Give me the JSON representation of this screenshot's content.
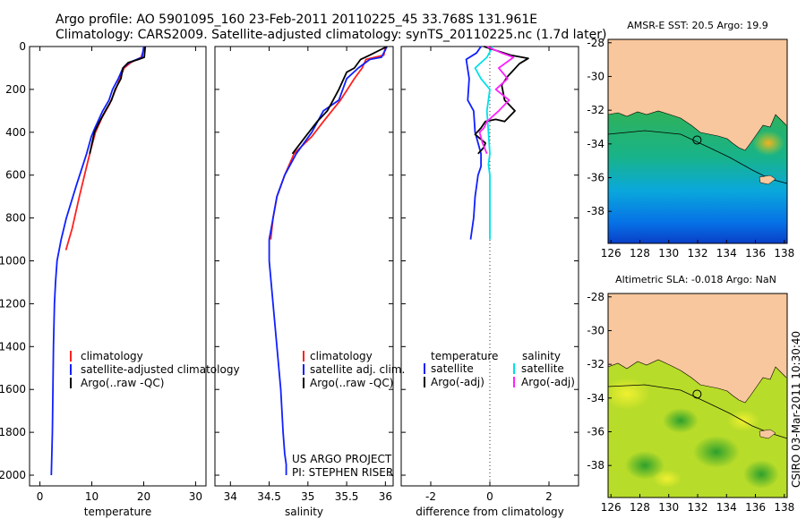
{
  "header": {
    "line1": "Argo profile: AO 5901095_160 23-Feb-2011 20110225_45 33.768S 131.961E",
    "line2": "Climatology: CARS2009. Satellite-adjusted climatology: synTS_20110225.nc (1.7d later)"
  },
  "credit": "CSIRO 03-Mar-2011 10:30:40",
  "project": {
    "line1": "US ARGO PROJECT",
    "line2": "PI: STEPHEN RISER"
  },
  "colors": {
    "climatology": "#ff2020",
    "satellite": "#1020ff",
    "argo": "#000000",
    "sat_salinity": "#00e0e8",
    "argo_salinity": "#ff20ff",
    "land": "#f9c79d"
  },
  "chart_data": [
    {
      "id": "temperature",
      "type": "line",
      "xlabel": "temperature",
      "xlim": [
        -2,
        32
      ],
      "ylim": [
        2050,
        0
      ],
      "xticks": [
        0,
        10,
        20,
        30
      ],
      "yticks": [
        0,
        200,
        400,
        600,
        800,
        1000,
        1200,
        1400,
        1600,
        1800,
        2000
      ],
      "legend": [
        "climatology",
        "satellite-adjusted climatology",
        "Argo(..raw -QC)"
      ],
      "series": [
        {
          "name": "climatology",
          "color": "#ff2020",
          "x": [
            20.2,
            19.5,
            17.5,
            16.2,
            15.4,
            14.6,
            13.4,
            12.0,
            10.7,
            9.8,
            9.0,
            7.6,
            6.2,
            5.0
          ],
          "y": [
            0,
            50,
            75,
            100,
            150,
            200,
            270,
            330,
            400,
            480,
            560,
            700,
            850,
            950
          ]
        },
        {
          "name": "satellite-adjusted climatology",
          "color": "#1020ff",
          "x": [
            20.0,
            19.7,
            17.2,
            16.0,
            15.1,
            14.0,
            13.3,
            12.1,
            10.6,
            9.9,
            9.0,
            7.0,
            5.1,
            4.1,
            3.3,
            3.0,
            2.8,
            2.6,
            2.5,
            2.4,
            2.3,
            2.2
          ],
          "y": [
            0,
            50,
            75,
            100,
            150,
            200,
            250,
            300,
            380,
            420,
            500,
            650,
            800,
            900,
            1000,
            1100,
            1200,
            1400,
            1600,
            1800,
            1900,
            2000
          ]
        },
        {
          "name": "Argo(..raw -QC)",
          "color": "#000000",
          "x": [
            20.3,
            20.1,
            19.0,
            17.0,
            16.0,
            15.6,
            14.5,
            13.8,
            12.6,
            11.5,
            10.5,
            9.6
          ],
          "y": [
            0,
            50,
            60,
            75,
            100,
            150,
            200,
            250,
            300,
            350,
            400,
            500
          ]
        }
      ]
    },
    {
      "id": "salinity",
      "type": "line",
      "xlabel": "salinity",
      "xlim": [
        33.8,
        36.1
      ],
      "ylim": [
        2050,
        0
      ],
      "xticks": [
        34,
        34.5,
        35,
        35.5,
        36
      ],
      "legend": [
        "climatology",
        "satellite adj. clim.",
        "Argo(..raw -QC)"
      ],
      "series": [
        {
          "name": "climatology",
          "color": "#ff2020",
          "x": [
            36.0,
            35.98,
            35.75,
            35.7,
            35.6,
            35.42,
            35.2,
            35.05,
            34.82,
            34.7,
            34.6,
            34.55,
            34.52
          ],
          "y": [
            0,
            40,
            60,
            100,
            150,
            250,
            350,
            420,
            500,
            600,
            700,
            800,
            900
          ]
        },
        {
          "name": "satellite adj. clim.",
          "color": "#1020ff",
          "x": [
            36.02,
            35.95,
            35.8,
            35.65,
            35.5,
            35.4,
            35.2,
            35.05,
            34.85,
            34.7,
            34.6,
            34.55,
            34.5,
            34.5,
            34.55,
            34.6,
            34.65,
            34.68,
            34.7,
            34.72,
            34.72
          ],
          "y": [
            0,
            50,
            60,
            100,
            150,
            250,
            300,
            400,
            500,
            600,
            700,
            800,
            900,
            1000,
            1200,
            1400,
            1600,
            1800,
            1900,
            1950,
            2000
          ]
        },
        {
          "name": "Argo(..raw -QC)",
          "color": "#000000",
          "x": [
            36.02,
            35.8,
            35.68,
            35.6,
            35.5,
            35.4,
            35.25,
            35.12,
            34.97,
            34.8
          ],
          "y": [
            0,
            40,
            60,
            100,
            120,
            200,
            300,
            350,
            420,
            500
          ]
        }
      ]
    },
    {
      "id": "difference",
      "type": "line",
      "xlabel": "difference from climatology",
      "xlim": [
        -3,
        3
      ],
      "ylim": [
        2050,
        0
      ],
      "xticks": [
        -2,
        0,
        2
      ],
      "legend_temperature_title": "temperature",
      "legend_salinity_title": "salinity",
      "legend_temperature": [
        "satellite",
        "Argo(-adj)"
      ],
      "legend_salinity": [
        "satellite",
        "Argo(-adj)"
      ],
      "series": [
        {
          "name": "temperature satellite",
          "color": "#1020ff",
          "x": [
            -0.3,
            -0.45,
            -0.8,
            -0.7,
            -0.75,
            -0.55,
            -0.5,
            -0.3,
            -0.3,
            -0.4,
            -0.5,
            -0.55,
            -0.6,
            -0.65
          ],
          "y": [
            0,
            30,
            60,
            150,
            250,
            300,
            400,
            500,
            560,
            600,
            700,
            800,
            850,
            900
          ]
        },
        {
          "name": "salinity satellite",
          "color": "#00e0e8",
          "x": [
            0.1,
            -0.1,
            -0.5,
            -0.3,
            0.0,
            -0.1,
            -0.05,
            0.0,
            -0.05,
            0.0,
            0.0,
            0.0,
            0.0
          ],
          "y": [
            0,
            50,
            100,
            150,
            200,
            300,
            400,
            500,
            550,
            600,
            700,
            800,
            900
          ]
        },
        {
          "name": "temperature Argo(-adj)",
          "color": "#000000",
          "x": [
            -0.2,
            0.7,
            1.3,
            1.0,
            0.6,
            0.4,
            0.5,
            0.85,
            0.5,
            0.2,
            -0.15,
            -0.3,
            -0.5,
            -0.15,
            -0.2,
            -0.4
          ],
          "y": [
            0,
            40,
            55,
            80,
            140,
            180,
            250,
            300,
            350,
            340,
            350,
            380,
            410,
            450,
            470,
            500
          ]
        },
        {
          "name": "salinity Argo(-adj)",
          "color": "#ff20ff",
          "x": [
            -0.1,
            0.4,
            0.8,
            0.3,
            0.6,
            0.2,
            0.65,
            0.3,
            -0.1,
            -0.2,
            -0.35,
            -0.25,
            -0.1
          ],
          "y": [
            0,
            30,
            50,
            100,
            150,
            200,
            250,
            300,
            350,
            380,
            400,
            450,
            500
          ]
        }
      ]
    },
    {
      "id": "sst-map",
      "type": "heatmap",
      "title": "AMSR-E SST: 20.5 Argo: 19.9",
      "xlim": [
        125.8,
        138.2
      ],
      "ylim": [
        -39.9,
        -27.8
      ],
      "xticks": [
        126,
        128,
        130,
        132,
        134,
        136,
        138
      ],
      "yticks": [
        -28,
        -30,
        -32,
        -34,
        -36,
        -38
      ],
      "marker": {
        "lon": 131.961,
        "lat": -33.768
      }
    },
    {
      "id": "sla-map",
      "type": "heatmap",
      "title": "Altimetric SLA: -0.018 Argo: NaN",
      "xlim": [
        125.8,
        138.2
      ],
      "ylim": [
        -39.9,
        -27.8
      ],
      "xticks": [
        126,
        128,
        130,
        132,
        134,
        136,
        138
      ],
      "yticks": [
        -28,
        -30,
        -32,
        -34,
        -36,
        -38
      ],
      "marker": {
        "lon": 131.961,
        "lat": -33.768
      }
    }
  ]
}
